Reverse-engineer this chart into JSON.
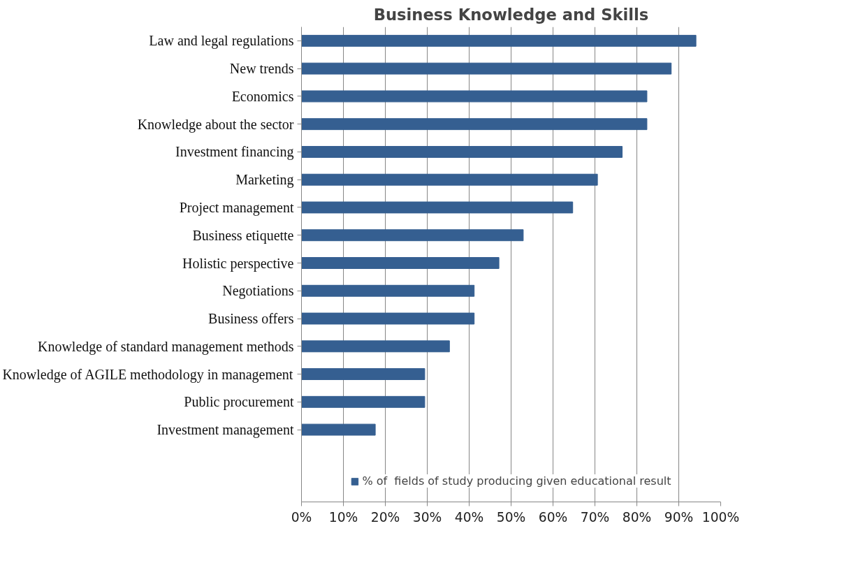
{
  "chart_data": {
    "type": "bar",
    "orientation": "horizontal",
    "title": "Business Knowledge and Skills",
    "categories": [
      "Law and legal regulations",
      "New trends",
      "Economics",
      "Knowledge about the sector",
      "Investment financing",
      "Marketing",
      "Project management",
      "Business etiquette",
      "Holistic perspective",
      "Negotiations",
      "Business offers",
      "Knowledge of standard management methods",
      "Knowledge of AGILE methodology in management",
      "Public procurement",
      "Investment management"
    ],
    "series": [
      {
        "name": "% of  fields of study producing given educational result",
        "color": "#355f91",
        "values": [
          94.1,
          88.2,
          82.4,
          82.4,
          76.5,
          70.6,
          64.7,
          52.9,
          47.1,
          41.2,
          41.2,
          35.3,
          29.4,
          29.4,
          17.6
        ]
      }
    ],
    "xlim": [
      0,
      100
    ],
    "xticks": [
      {
        "value": 0,
        "label": "0%"
      },
      {
        "value": 10,
        "label": "10%"
      },
      {
        "value": 20,
        "label": "20%"
      },
      {
        "value": 30,
        "label": "30%"
      },
      {
        "value": 40,
        "label": "40%"
      },
      {
        "value": 50,
        "label": "50%"
      },
      {
        "value": 60,
        "label": "60%"
      },
      {
        "value": 70,
        "label": "70%"
      },
      {
        "value": 80,
        "label": "80%"
      },
      {
        "value": 90,
        "label": "90%"
      },
      {
        "value": 100,
        "label": "100%"
      }
    ],
    "grid": "x",
    "legend": "bottom"
  }
}
